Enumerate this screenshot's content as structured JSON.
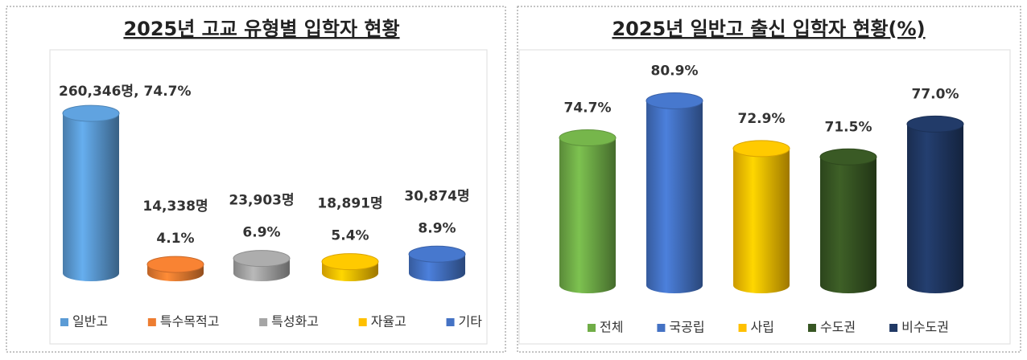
{
  "chart_data": [
    {
      "type": "cylinder",
      "title": "2025년 고교 유형별 입학자 현황",
      "categories": [
        "일반고",
        "특수목적고",
        "특성화고",
        "자율고",
        "기타"
      ],
      "values": [
        74.7,
        4.1,
        6.9,
        5.4,
        8.9
      ],
      "value_labels": [
        "74.7%",
        "4.1%",
        "6.9%",
        "5.4%",
        "8.9%"
      ],
      "counts": [
        260346,
        14338,
        23903,
        18891,
        30874
      ],
      "count_labels": [
        "260,346명,",
        "14,338명",
        "23,903명",
        "18,891명",
        "30,874명"
      ],
      "colors": [
        "#5b9bd5",
        "#ed7d31",
        "#a5a5a5",
        "#ffc000",
        "#4472c4"
      ],
      "ylim": [
        0,
        80
      ]
    },
    {
      "type": "cylinder",
      "title": "2025년 일반고 출신 입학자 현황(%)",
      "categories": [
        "전체",
        "국공립",
        "사립",
        "수도권",
        "비수도권"
      ],
      "values": [
        74.7,
        80.9,
        72.9,
        71.5,
        77.0
      ],
      "value_labels": [
        "74.7%",
        "80.9%",
        "72.9%",
        "71.5%",
        "77.0%"
      ],
      "colors": [
        "#70ad47",
        "#4472c4",
        "#ffc000",
        "#375623",
        "#203864"
      ],
      "ylim": [
        50,
        85
      ]
    }
  ]
}
